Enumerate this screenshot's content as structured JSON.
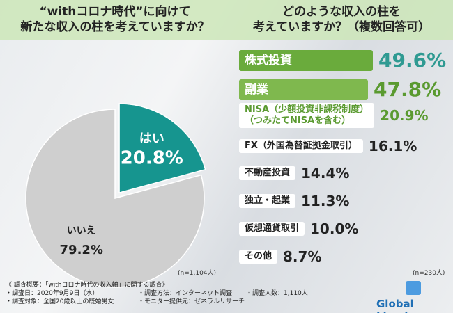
{
  "chart_data": [
    {
      "type": "pie",
      "title": "“withコロナ時代”に向けて\n新たな収入の柱を考えていますか？",
      "categories": [
        "はい",
        "いいえ"
      ],
      "values": [
        20.8,
        79.2
      ],
      "value_labels": [
        "20.8%",
        "79.2%"
      ],
      "colors": [
        "#16958f",
        "#cfcfcf"
      ],
      "note": "(n=1,104人)"
    },
    {
      "type": "bar",
      "title": "どのような収入の柱を\n考えていますか？（複数回答可）",
      "categories": [
        "株式投資",
        "副業",
        "NISA（少額投資非課税制度）\n（つみたてNISAを含む）",
        "FX（外国為替証拠金取引）",
        "不動産投資",
        "独立・起業",
        "仮想通貨取引",
        "その他"
      ],
      "values": [
        49.6,
        47.8,
        20.9,
        16.1,
        14.4,
        11.3,
        10.0,
        8.7
      ],
      "value_labels": [
        "49.6%",
        "47.8%",
        "20.9%",
        "16.1%",
        "14.4%",
        "11.3%",
        "10.0%",
        "8.7%"
      ],
      "colors": [
        "#6aab3c",
        "#7fb84e",
        "#ffffff",
        "#ffffff",
        "#ffffff",
        "#ffffff",
        "#ffffff",
        "#ffffff"
      ],
      "label_colors": [
        "#ffffff",
        "#ffffff",
        "#5a9a30",
        "#222222",
        "#222222",
        "#222222",
        "#222222",
        "#222222"
      ],
      "value_colors": [
        "#2f9a92",
        "#5a9a30",
        "#5a9a30",
        "#222222",
        "#222222",
        "#222222",
        "#222222",
        "#222222"
      ],
      "note": "(n=230人)"
    }
  ],
  "footer": {
    "lines": [
      "《 調査概要：「withコロナ時代の収入軸」に関する調査》",
      "・調査日：2020年9月9日（水）",
      "・調査方法：インターネット調査",
      "・調査人数：1,110人",
      "・調査対象：全国20歳以上の既婚男女",
      "・モニター提供元：ゼネラルリサーチ"
    ],
    "logo": "Global Lloyds"
  }
}
